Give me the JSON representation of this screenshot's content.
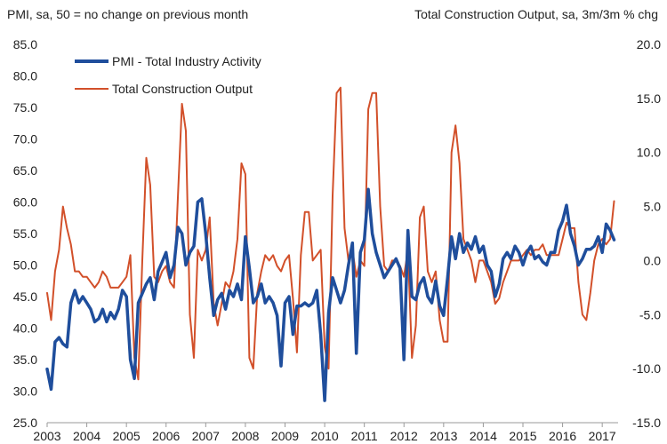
{
  "chart_data": {
    "type": "line",
    "left_axis_title": "PMI, sa, 50 = no change on previous month",
    "right_axis_title": "Total Construction Output, sa, 3m/3m % chg",
    "left_ylim": [
      25,
      85
    ],
    "right_ylim": [
      -15,
      20
    ],
    "left_ticks": [
      "25.0",
      "30.0",
      "35.0",
      "40.0",
      "45.0",
      "50.0",
      "55.0",
      "60.0",
      "65.0",
      "70.0",
      "75.0",
      "80.0",
      "85.0"
    ],
    "right_ticks": [
      "-15.0",
      "-10.0",
      "-5.0",
      "0.0",
      "5.0",
      "10.0",
      "15.0",
      "20.0"
    ],
    "x_tick_labels": [
      "2003",
      "2004",
      "2005",
      "2006",
      "2007",
      "2008",
      "2009",
      "2010",
      "2011",
      "2012",
      "2013",
      "2014",
      "2015",
      "2016",
      "2017"
    ],
    "x_range": [
      2003.0,
      2017.4
    ],
    "grid": false,
    "legend_position": "top-left",
    "series": [
      {
        "name": "PMI - Total Industry Activity",
        "axis": "left",
        "color": "#1f4e9c",
        "x": [
          2003.0,
          2003.1,
          2003.2,
          2003.3,
          2003.4,
          2003.5,
          2003.6,
          2003.7,
          2003.8,
          2003.9,
          2004.0,
          2004.1,
          2004.2,
          2004.3,
          2004.4,
          2004.5,
          2004.6,
          2004.7,
          2004.8,
          2004.9,
          2005.0,
          2005.1,
          2005.2,
          2005.3,
          2005.4,
          2005.5,
          2005.6,
          2005.7,
          2005.8,
          2005.9,
          2006.0,
          2006.1,
          2006.2,
          2006.3,
          2006.4,
          2006.5,
          2006.6,
          2006.7,
          2006.8,
          2006.9,
          2007.0,
          2007.1,
          2007.2,
          2007.3,
          2007.4,
          2007.5,
          2007.6,
          2007.7,
          2007.8,
          2007.9,
          2008.0,
          2008.1,
          2008.2,
          2008.3,
          2008.4,
          2008.5,
          2008.6,
          2008.7,
          2008.8,
          2008.9,
          2009.0,
          2009.1,
          2009.2,
          2009.3,
          2009.4,
          2009.5,
          2009.6,
          2009.7,
          2009.8,
          2009.9,
          2010.0,
          2010.1,
          2010.2,
          2010.3,
          2010.4,
          2010.5,
          2010.6,
          2010.7,
          2010.8,
          2010.9,
          2011.0,
          2011.1,
          2011.2,
          2011.3,
          2011.4,
          2011.5,
          2011.6,
          2011.7,
          2011.8,
          2011.9,
          2012.0,
          2012.1,
          2012.2,
          2012.3,
          2012.4,
          2012.5,
          2012.6,
          2012.7,
          2012.8,
          2012.9,
          2013.0,
          2013.1,
          2013.2,
          2013.3,
          2013.4,
          2013.5,
          2013.6,
          2013.7,
          2013.8,
          2013.9,
          2014.0,
          2014.1,
          2014.2,
          2014.3,
          2014.4,
          2014.5,
          2014.6,
          2014.7,
          2014.8,
          2014.9,
          2015.0,
          2015.1,
          2015.2,
          2015.3,
          2015.4,
          2015.5,
          2015.6,
          2015.7,
          2015.8,
          2015.9,
          2016.0,
          2016.1,
          2016.2,
          2016.3,
          2016.4,
          2016.5,
          2016.6,
          2016.7,
          2016.8,
          2016.9,
          2017.0,
          2017.1,
          2017.2,
          2017.3
        ],
        "values": [
          33.5,
          30.3,
          37.8,
          38.5,
          37.5,
          37.0,
          44.0,
          46.0,
          44.0,
          45.0,
          44.0,
          43.0,
          41.0,
          41.5,
          43.0,
          41.0,
          42.5,
          41.5,
          43.0,
          46.0,
          45.0,
          35.0,
          32.0,
          44.0,
          45.5,
          47.0,
          48.0,
          44.5,
          49.0,
          50.5,
          52.0,
          48.0,
          50.0,
          56.0,
          55.0,
          50.0,
          52.0,
          53.0,
          60.0,
          60.5,
          55.0,
          48.0,
          42.0,
          44.5,
          45.5,
          43.0,
          46.0,
          45.0,
          47.0,
          44.5,
          54.5,
          49.5,
          44.0,
          45.0,
          47.0,
          44.0,
          45.0,
          44.0,
          42.0,
          34.0,
          44.0,
          45.0,
          39.0,
          43.5,
          43.5,
          44.0,
          43.5,
          44.0,
          46.0,
          39.0,
          28.5,
          42.5,
          48.0,
          46.0,
          44.0,
          46.0,
          50.0,
          53.5,
          36.0,
          52.0,
          54.0,
          62.0,
          55.0,
          52.0,
          50.0,
          48.0,
          49.0,
          50.0,
          51.0,
          49.5,
          35.0,
          55.5,
          45.0,
          44.5,
          47.0,
          48.0,
          45.0,
          44.0,
          47.5,
          43.5,
          42.0,
          48.0,
          54.5,
          51.0,
          55.0,
          52.0,
          53.5,
          52.5,
          54.5,
          52.0,
          53.0,
          50.0,
          49.0,
          45.0,
          47.0,
          51.0,
          52.0,
          51.0,
          53.0,
          52.0,
          50.0,
          52.0,
          53.0,
          51.0,
          51.5,
          50.5,
          50.0,
          52.0,
          52.0,
          55.5,
          57.0,
          59.5,
          55.0,
          53.0,
          50.0,
          51.0,
          52.5,
          52.5,
          53.0,
          54.5,
          52.0,
          56.5,
          55.5,
          54.0
        ]
      },
      {
        "name": "Total Construction Output",
        "axis": "right",
        "color": "#d2502a",
        "x": [
          2003.0,
          2003.1,
          2003.2,
          2003.3,
          2003.4,
          2003.5,
          2003.6,
          2003.7,
          2003.8,
          2003.9,
          2004.0,
          2004.1,
          2004.2,
          2004.3,
          2004.4,
          2004.5,
          2004.6,
          2004.7,
          2004.8,
          2004.9,
          2005.0,
          2005.1,
          2005.2,
          2005.3,
          2005.4,
          2005.5,
          2005.6,
          2005.7,
          2005.8,
          2005.9,
          2006.0,
          2006.1,
          2006.2,
          2006.3,
          2006.4,
          2006.5,
          2006.6,
          2006.7,
          2006.8,
          2006.9,
          2007.0,
          2007.1,
          2007.2,
          2007.3,
          2007.4,
          2007.5,
          2007.6,
          2007.7,
          2007.8,
          2007.9,
          2008.0,
          2008.1,
          2008.2,
          2008.3,
          2008.4,
          2008.5,
          2008.6,
          2008.7,
          2008.8,
          2008.9,
          2009.0,
          2009.1,
          2009.2,
          2009.3,
          2009.4,
          2009.5,
          2009.6,
          2009.7,
          2009.8,
          2009.9,
          2010.0,
          2010.1,
          2010.2,
          2010.3,
          2010.4,
          2010.5,
          2010.6,
          2010.7,
          2010.8,
          2010.9,
          2011.0,
          2011.1,
          2011.2,
          2011.3,
          2011.4,
          2011.5,
          2011.6,
          2011.7,
          2011.8,
          2011.9,
          2012.0,
          2012.1,
          2012.2,
          2012.3,
          2012.4,
          2012.5,
          2012.6,
          2012.7,
          2012.8,
          2012.9,
          2013.0,
          2013.1,
          2013.2,
          2013.3,
          2013.4,
          2013.5,
          2013.6,
          2013.7,
          2013.8,
          2013.9,
          2014.0,
          2014.1,
          2014.2,
          2014.3,
          2014.4,
          2014.5,
          2014.6,
          2014.7,
          2014.8,
          2014.9,
          2015.0,
          2015.1,
          2015.2,
          2015.3,
          2015.4,
          2015.5,
          2015.6,
          2015.7,
          2015.8,
          2015.9,
          2016.0,
          2016.1,
          2016.2,
          2016.3,
          2016.4,
          2016.5,
          2016.6,
          2016.7,
          2016.8,
          2016.9,
          2017.0,
          2017.1,
          2017.2,
          2017.3
        ],
        "values": [
          -3.0,
          -5.5,
          -1.0,
          1.0,
          5.0,
          3.0,
          1.5,
          -1.0,
          -1.0,
          -1.5,
          -1.5,
          -2.0,
          -2.5,
          -2.0,
          -1.0,
          -1.5,
          -2.5,
          -2.5,
          -2.5,
          -2.0,
          -1.5,
          0.5,
          -9.0,
          -11.0,
          0.0,
          9.5,
          7.0,
          -1.5,
          -2.0,
          -1.0,
          -0.5,
          -2.0,
          -2.5,
          6.0,
          14.5,
          12.0,
          -5.0,
          -9.0,
          1.0,
          0.0,
          1.0,
          4.0,
          -4.0,
          -6.0,
          -4.0,
          -2.0,
          -2.5,
          -1.0,
          2.0,
          9.0,
          8.0,
          -9.0,
          -10.0,
          -3.0,
          -1.0,
          0.5,
          0.0,
          0.5,
          -0.5,
          -1.0,
          0.0,
          0.5,
          -3.5,
          -8.5,
          0.5,
          4.5,
          4.5,
          0.0,
          0.5,
          1.0,
          -8.0,
          -10.0,
          6.0,
          15.5,
          16.0,
          3.0,
          0.0,
          1.0,
          -1.5,
          0.0,
          -0.5,
          14.0,
          15.5,
          15.5,
          5.0,
          -0.5,
          -1.0,
          0.0,
          0.0,
          -0.5,
          -1.5,
          1.0,
          -9.0,
          -6.0,
          4.0,
          5.0,
          -1.0,
          -2.0,
          -1.0,
          -5.5,
          -7.5,
          -7.5,
          10.0,
          12.5,
          9.0,
          2.0,
          1.0,
          0.0,
          -2.0,
          0.0,
          0.0,
          -1.0,
          -2.0,
          -4.0,
          -3.5,
          -2.0,
          -1.0,
          0.0,
          0.0,
          0.0,
          0.5,
          1.0,
          0.5,
          1.0,
          1.0,
          1.5,
          0.5,
          0.5,
          0.5,
          0.5,
          2.0,
          3.5,
          3.0,
          3.0,
          -2.0,
          -5.0,
          -5.5,
          -3.0,
          0.0,
          1.5,
          2.0,
          1.5,
          2.0,
          5.5
        ]
      }
    ]
  }
}
